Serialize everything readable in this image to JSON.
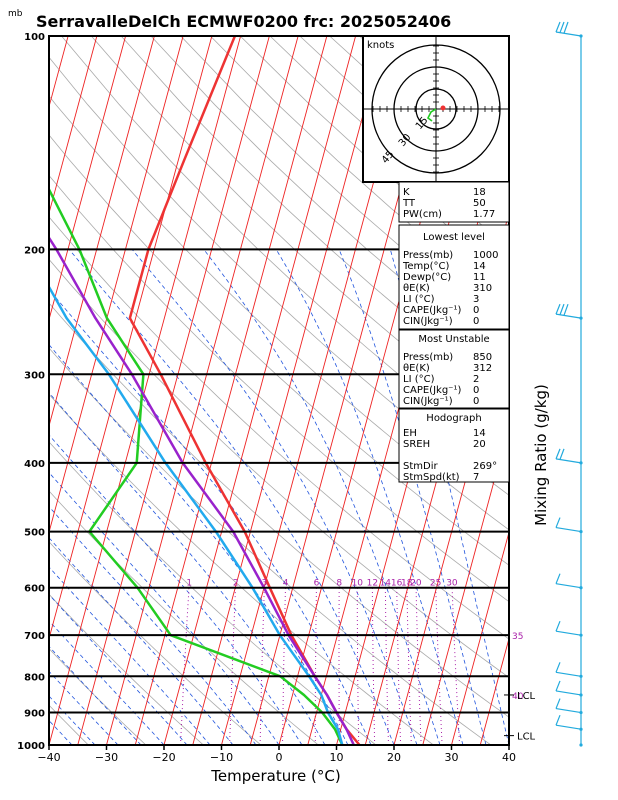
{
  "chart_data": {
    "type": "line",
    "title": "SerravalleDelCh ECMWF0200 frc: 2025052406",
    "pressure_unit_label": "mb",
    "xlabel": "Temperature (°C)",
    "ylabel_right": "Mixing Ratio (g/kg)",
    "xlim": [
      -40,
      40
    ],
    "ylim_mb": [
      1000,
      100
    ],
    "x_ticks": [
      "−40",
      "−30",
      "−20",
      "−10",
      "0",
      "10",
      "20",
      "30",
      "40"
    ],
    "x_tick_values": [
      -40,
      -30,
      -20,
      -10,
      0,
      10,
      20,
      30,
      40
    ],
    "pressure_ticks": [
      "100",
      "200",
      "300",
      "400",
      "500",
      "600",
      "700",
      "800",
      "900",
      "1000"
    ],
    "pressure_tick_values": [
      100,
      200,
      300,
      400,
      500,
      600,
      700,
      800,
      900,
      1000
    ],
    "mixing_ratio_labels": [
      "1",
      "2",
      "3",
      "4",
      "6",
      "8",
      "10",
      "12",
      "14",
      "16",
      "18",
      "20",
      "25",
      "30"
    ],
    "mixing_ratio_values": [
      1,
      2,
      3,
      4,
      6,
      8,
      10,
      12,
      14,
      16,
      18,
      20,
      25,
      30
    ],
    "isotherm_labels_right": [
      {
        "text": "35",
        "p": 700
      },
      {
        "text": "40",
        "p": 850
      }
    ],
    "lcl_markers": [
      {
        "text": "LCL",
        "p": 850
      },
      {
        "text": "LCL",
        "p": 970
      }
    ],
    "series": [
      {
        "color": "#ee3333",
        "points": [
          [
            1000,
            14
          ],
          [
            950,
            11
          ],
          [
            900,
            8.5
          ],
          [
            850,
            6
          ],
          [
            800,
            3
          ],
          [
            700,
            -3
          ],
          [
            600,
            -9
          ],
          [
            500,
            -16
          ],
          [
            400,
            -26
          ],
          [
            300,
            -38
          ],
          [
            250,
            -46
          ],
          [
            200,
            -46
          ],
          [
            150,
            -44
          ],
          [
            100,
            -41
          ]
        ]
      },
      {
        "color": "#22cc22",
        "points": [
          [
            1000,
            11
          ],
          [
            950,
            9
          ],
          [
            900,
            6
          ],
          [
            850,
            2
          ],
          [
            800,
            -3
          ],
          [
            700,
            -24
          ],
          [
            600,
            -32
          ],
          [
            500,
            -43
          ],
          [
            400,
            -38
          ],
          [
            300,
            -41
          ],
          [
            250,
            -50
          ],
          [
            200,
            -58
          ],
          [
            150,
            -70
          ],
          [
            100,
            -80
          ]
        ]
      },
      {
        "color": "#9922cc",
        "points": [
          [
            1000,
            13
          ],
          [
            950,
            11
          ],
          [
            900,
            8.5
          ],
          [
            850,
            6
          ],
          [
            800,
            3
          ],
          [
            700,
            -3.5
          ],
          [
            600,
            -10
          ],
          [
            500,
            -18
          ],
          [
            400,
            -30
          ],
          [
            300,
            -43
          ],
          [
            250,
            -52
          ],
          [
            200,
            -62
          ],
          [
            150,
            -76
          ],
          [
            120,
            -86
          ]
        ]
      },
      {
        "color": "#22aaee",
        "points": [
          [
            1000,
            11
          ],
          [
            950,
            9.5
          ],
          [
            900,
            7
          ],
          [
            850,
            5
          ],
          [
            800,
            2
          ],
          [
            700,
            -5
          ],
          [
            600,
            -12
          ],
          [
            500,
            -21
          ],
          [
            400,
            -33
          ],
          [
            300,
            -47
          ],
          [
            250,
            -57
          ],
          [
            200,
            -67
          ],
          [
            150,
            -81
          ],
          [
            120,
            -91
          ]
        ]
      }
    ],
    "hodograph": {
      "units": "knots",
      "ring_labels": [
        "15",
        "30",
        "45"
      ],
      "ring_values": [
        15,
        30,
        45
      ]
    }
  },
  "indices": {
    "block1": [
      {
        "label": "K",
        "value": "18"
      },
      {
        "label": "TT",
        "value": "50"
      },
      {
        "label": "PW(cm)",
        "value": "1.77"
      }
    ],
    "lowest_level": {
      "header": "Lowest level",
      "rows": [
        {
          "label": "Press(mb)",
          "value": "1000"
        },
        {
          "label": "Temp(°C)",
          "value": "14"
        },
        {
          "label": "Dewp(°C)",
          "value": "11"
        },
        {
          "label": "θE(K)",
          "value": "310"
        },
        {
          "label": "LI (°C)",
          "value": "3"
        },
        {
          "label": "CAPE(Jkg⁻¹)",
          "value": "0"
        },
        {
          "label": "CIN(Jkg⁻¹)",
          "value": "0"
        }
      ]
    },
    "most_unstable": {
      "header": "Most Unstable",
      "rows": [
        {
          "label": "Press(mb)",
          "value": "850"
        },
        {
          "label": "θE(K)",
          "value": "312"
        },
        {
          "label": "LI (°C)",
          "value": "2"
        },
        {
          "label": "CAPE(Jkg⁻¹)",
          "value": "0"
        },
        {
          "label": "CIN(Jkg⁻¹)",
          "value": "0"
        }
      ]
    },
    "hodograph_box": {
      "header": "Hodograph",
      "rows": [
        {
          "label": "EH",
          "value": "14"
        },
        {
          "label": "SREH",
          "value": "20"
        },
        {
          "label": "StmDir",
          "value": "269°"
        },
        {
          "label": "StmSpd(kt)",
          "value": "7"
        }
      ]
    }
  },
  "colors": {
    "temperature": "#ee3333",
    "dewpoint": "#22cc22",
    "parcel": "#9922cc",
    "wetbulb": "#22aaee",
    "isotherm": "#ee2222",
    "dry_adiabat": "#aaaaaa",
    "moist_adiabat": "#2255dd",
    "mixing_ratio": "#aa22aa",
    "wind_barb": "#22aadd"
  }
}
